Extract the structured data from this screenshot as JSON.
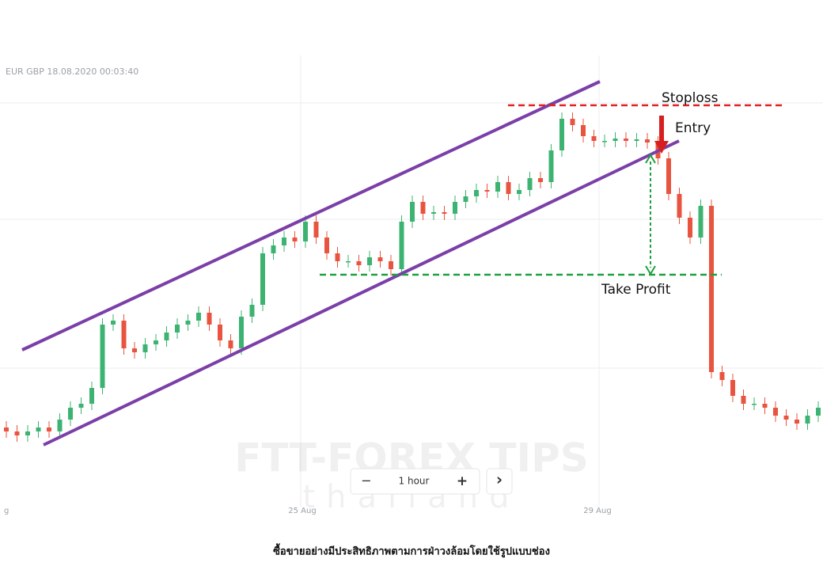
{
  "header": "EUR GBP  18.08.2020 00:03:40",
  "chart_data": {
    "type": "candlestick",
    "ylim": [
      0,
      640
    ],
    "up_color": "#3cb371",
    "down_color": "#e8543f",
    "x_labels": [
      "g",
      "25 Aug",
      "29 Aug"
    ],
    "open": [
      100,
      95,
      90,
      95,
      100,
      95,
      110,
      125,
      130,
      150,
      230,
      235,
      200,
      195,
      205,
      210,
      220,
      230,
      235,
      245,
      230,
      210,
      200,
      240,
      255,
      320,
      330,
      340,
      335,
      360,
      340,
      320,
      310,
      310,
      305,
      315,
      310,
      300,
      360,
      385,
      370,
      372,
      370,
      385,
      392,
      400,
      398,
      410,
      395,
      400,
      415,
      410,
      450,
      490,
      482,
      468,
      462,
      462,
      465,
      462,
      464,
      460,
      440,
      395,
      365,
      340,
      380,
      170,
      160,
      140,
      130,
      130,
      125,
      115,
      110,
      105,
      115
    ],
    "close": [
      95,
      90,
      95,
      100,
      95,
      110,
      125,
      130,
      150,
      230,
      235,
      200,
      195,
      205,
      210,
      220,
      230,
      235,
      245,
      230,
      210,
      200,
      240,
      255,
      320,
      330,
      340,
      335,
      360,
      340,
      320,
      310,
      310,
      305,
      315,
      310,
      300,
      360,
      385,
      370,
      372,
      370,
      385,
      392,
      400,
      398,
      410,
      395,
      400,
      415,
      410,
      450,
      490,
      482,
      468,
      462,
      462,
      465,
      462,
      464,
      460,
      440,
      395,
      365,
      340,
      380,
      170,
      160,
      140,
      130,
      130,
      125,
      115,
      110,
      105,
      115,
      125
    ],
    "high": [
      108,
      103,
      103,
      108,
      108,
      118,
      133,
      138,
      158,
      238,
      243,
      243,
      208,
      213,
      218,
      228,
      238,
      243,
      253,
      253,
      238,
      218,
      248,
      263,
      328,
      338,
      348,
      348,
      368,
      368,
      348,
      328,
      318,
      318,
      323,
      323,
      318,
      368,
      393,
      393,
      380,
      380,
      393,
      400,
      408,
      408,
      418,
      418,
      408,
      423,
      423,
      458,
      498,
      498,
      490,
      476,
      470,
      473,
      473,
      472,
      472,
      468,
      448,
      403,
      373,
      388,
      388,
      178,
      168,
      148,
      138,
      138,
      133,
      123,
      118,
      123,
      133
    ],
    "low": [
      87,
      82,
      82,
      87,
      87,
      87,
      102,
      117,
      122,
      142,
      222,
      192,
      187,
      187,
      197,
      202,
      212,
      222,
      227,
      222,
      202,
      192,
      192,
      232,
      247,
      312,
      322,
      327,
      327,
      332,
      312,
      302,
      302,
      297,
      297,
      302,
      292,
      292,
      352,
      362,
      362,
      362,
      362,
      377,
      384,
      390,
      390,
      387,
      387,
      392,
      402,
      402,
      442,
      474,
      460,
      454,
      454,
      454,
      454,
      454,
      452,
      432,
      387,
      357,
      332,
      332,
      162,
      152,
      132,
      122,
      122,
      117,
      107,
      102,
      97,
      97,
      107
    ]
  },
  "annotations": {
    "stoploss": "Stoploss",
    "entry": "Entry",
    "take_profit": "Take Profit"
  },
  "controls": {
    "minus": "−",
    "interval": "1 hour",
    "plus": "+",
    "next": "›"
  },
  "watermark": {
    "brand": "FTT-FOREX TIPS",
    "sub": "thailand"
  },
  "caption": "ซื้อขายอย่างมีประสิทธิภาพตามการฝ่าวงล้อมโดยใช้รูปแบบช่อง"
}
